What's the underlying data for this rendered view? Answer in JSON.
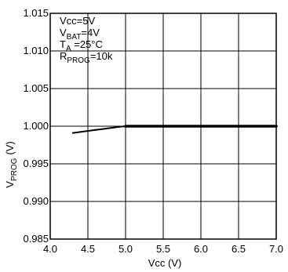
{
  "chart_data": {
    "type": "line",
    "title": "",
    "xlabel": "Vcc (V)",
    "ylabel_main": "V",
    "ylabel_sub": "PROG",
    "ylabel_unit": "(V)",
    "xlim": [
      4.0,
      7.0
    ],
    "ylim": [
      0.985,
      1.015
    ],
    "x_ticks": [
      4.0,
      4.5,
      5.0,
      5.5,
      6.0,
      6.5,
      7.0
    ],
    "x_tick_labels": [
      "4.0",
      "4.5",
      "5.0",
      "5.5",
      "6.0",
      "6.5",
      "7.0"
    ],
    "y_ticks": [
      0.985,
      0.99,
      0.995,
      1.0,
      1.005,
      1.01,
      1.015
    ],
    "y_tick_labels": [
      "0.985",
      "0.990",
      "0.995",
      "1.000",
      "1.005",
      "1.010",
      "1.015"
    ],
    "grid": true,
    "series": [
      {
        "x": [
          4.3,
          4.6,
          4.9,
          5.0,
          5.5,
          6.0,
          6.5,
          7.0
        ],
        "y": [
          0.9991,
          0.9995,
          0.9999,
          1.0,
          1.0,
          1.0,
          1.0,
          1.0
        ],
        "color": "#000000"
      }
    ],
    "annotations": [
      {
        "id": "vcc",
        "main": "Vcc=5V",
        "sub": "",
        "rest": ""
      },
      {
        "id": "vbat",
        "main": "V",
        "sub": "BAT",
        "rest": "=4V"
      },
      {
        "id": "ta",
        "main": "T",
        "sub": "A",
        "rest": " =25°C"
      },
      {
        "id": "rprog",
        "main": "R",
        "sub": "PROG",
        "rest": "=10k"
      }
    ]
  }
}
